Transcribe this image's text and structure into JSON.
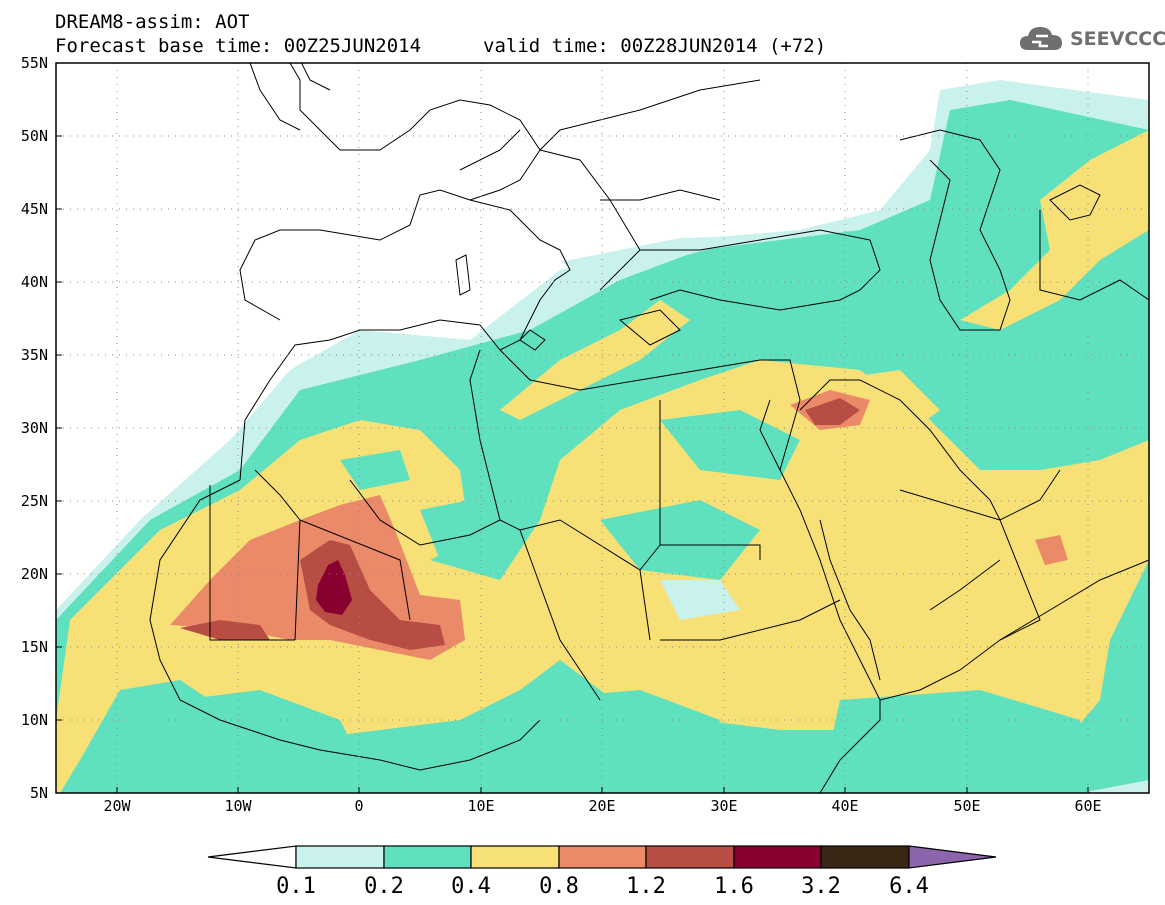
{
  "title_line1": "DREAM8-assim: AOT",
  "title_line2": "Forecast base time: 00Z25JUN2014",
  "valid_time": "valid time: 00Z28JUN2014 (+72)",
  "logo": {
    "text": "SEEVCCC",
    "icon": "cloud-icon",
    "color": "#6f6f6f"
  },
  "lat_labels": [
    "55N",
    "50N",
    "45N",
    "40N",
    "35N",
    "30N",
    "25N",
    "20N",
    "15N",
    "10N",
    "5N"
  ],
  "lon_labels": [
    "20W",
    "10W",
    "0",
    "10E",
    "20E",
    "30E",
    "40E",
    "50E",
    "60E"
  ],
  "colorbar": {
    "levels": [
      "0.1",
      "0.2",
      "0.4",
      "0.8",
      "1.2",
      "1.6",
      "3.2",
      "6.4"
    ],
    "colors": [
      "#ffffff",
      "#c9f2ec",
      "#5fe0bf",
      "#f7e176",
      "#eb8a68",
      "#b84e43",
      "#880030",
      "#3a2615",
      "#8b66ad"
    ]
  },
  "map_colors": {
    "ocean": "#ffffff",
    "coast": "#000000"
  }
}
